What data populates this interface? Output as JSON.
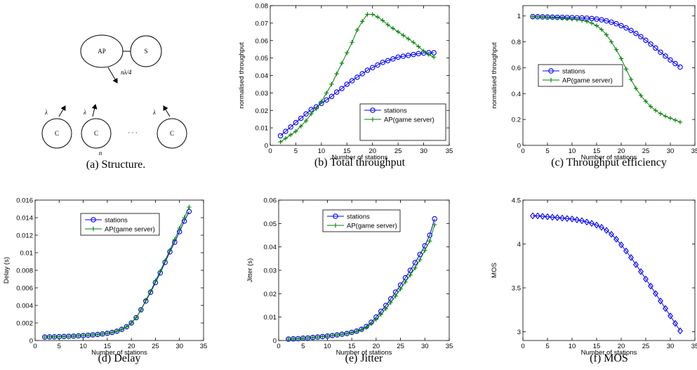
{
  "figure_title": "",
  "structure": {
    "caption": "(a)  Structure.",
    "ap_label": "AP",
    "server_label": "S",
    "client_label": "C",
    "downlink_label": "nλ/4",
    "uplink_label": "λ",
    "ellipsis": "· · ·",
    "count_label": "n"
  },
  "chart_data": [
    {
      "id": "b",
      "type": "line",
      "caption": "(b)  Total throughput",
      "xlabel": "Number of stations",
      "ylabel": "normalised throughput",
      "xlim": [
        0,
        35
      ],
      "ylim": [
        0,
        0.08
      ],
      "xticks": [
        "0",
        "5",
        "10",
        "15",
        "20",
        "25",
        "30",
        "35"
      ],
      "yticks": [
        "0",
        "0.01",
        "0.02",
        "0.03",
        "0.04",
        "0.05",
        "0.06",
        "0.07",
        "0.08"
      ],
      "legend_position": "bottom-right",
      "series": [
        {
          "name": "stations",
          "color": "#0000ff",
          "marker": "circle",
          "x": [
            2,
            3,
            4,
            5,
            6,
            7,
            8,
            9,
            10,
            11,
            12,
            13,
            14,
            15,
            16,
            17,
            18,
            19,
            20,
            21,
            22,
            23,
            24,
            25,
            26,
            27,
            28,
            29,
            30,
            31,
            32
          ],
          "y": [
            0.0055,
            0.008,
            0.0105,
            0.013,
            0.0155,
            0.018,
            0.0205,
            0.022,
            0.024,
            0.026,
            0.028,
            0.0305,
            0.0325,
            0.035,
            0.037,
            0.039,
            0.041,
            0.043,
            0.0445,
            0.046,
            0.0475,
            0.0485,
            0.0495,
            0.0505,
            0.051,
            0.0515,
            0.052,
            0.0525,
            0.0528,
            0.053,
            0.053
          ]
        },
        {
          "name": "AP(game server)",
          "color": "#008000",
          "marker": "plus",
          "x": [
            2,
            3,
            4,
            5,
            6,
            7,
            8,
            9,
            10,
            11,
            12,
            13,
            14,
            15,
            16,
            17,
            18,
            19,
            20,
            21,
            22,
            23,
            24,
            25,
            26,
            27,
            28,
            29,
            30,
            31,
            32
          ],
          "y": [
            0.002,
            0.004,
            0.006,
            0.008,
            0.011,
            0.014,
            0.018,
            0.021,
            0.025,
            0.03,
            0.035,
            0.041,
            0.047,
            0.053,
            0.059,
            0.066,
            0.071,
            0.075,
            0.075,
            0.0735,
            0.0715,
            0.069,
            0.067,
            0.065,
            0.063,
            0.061,
            0.059,
            0.0565,
            0.054,
            0.052,
            0.0505
          ]
        }
      ]
    },
    {
      "id": "c",
      "type": "line",
      "caption": "(c)  Throughput efficiency",
      "xlabel": "Number of stations",
      "ylabel": "normalised throughput",
      "xlim": [
        0,
        35
      ],
      "ylim": [
        0,
        1.08
      ],
      "xticks": [
        "0",
        "5",
        "10",
        "15",
        "20",
        "25",
        "30",
        "35"
      ],
      "yticks": [
        "0",
        "0.2",
        "0.4",
        "0.6",
        "0.8",
        "1"
      ],
      "legend_position": "middle-left",
      "series": [
        {
          "name": "stations",
          "color": "#0000ff",
          "marker": "circle",
          "x": [
            2,
            3,
            4,
            5,
            6,
            7,
            8,
            9,
            10,
            11,
            12,
            13,
            14,
            15,
            16,
            17,
            18,
            19,
            20,
            21,
            22,
            23,
            24,
            25,
            26,
            27,
            28,
            29,
            30,
            31,
            32
          ],
          "y": [
            0.995,
            0.994,
            0.993,
            0.992,
            0.991,
            0.99,
            0.989,
            0.988,
            0.987,
            0.986,
            0.985,
            0.983,
            0.98,
            0.976,
            0.97,
            0.962,
            0.952,
            0.94,
            0.925,
            0.908,
            0.888,
            0.865,
            0.84,
            0.812,
            0.783,
            0.752,
            0.72,
            0.69,
            0.66,
            0.632,
            0.605
          ]
        },
        {
          "name": "AP(game server)",
          "color": "#008000",
          "marker": "plus",
          "x": [
            2,
            3,
            4,
            5,
            6,
            7,
            8,
            9,
            10,
            11,
            12,
            13,
            14,
            15,
            16,
            17,
            18,
            19,
            20,
            21,
            22,
            23,
            24,
            25,
            26,
            27,
            28,
            29,
            30,
            31,
            32
          ],
          "y": [
            0.995,
            0.993,
            0.991,
            0.989,
            0.987,
            0.985,
            0.982,
            0.979,
            0.976,
            0.972,
            0.966,
            0.958,
            0.945,
            0.925,
            0.895,
            0.855,
            0.8,
            0.74,
            0.67,
            0.59,
            0.51,
            0.44,
            0.385,
            0.34,
            0.3,
            0.27,
            0.245,
            0.225,
            0.21,
            0.195,
            0.18
          ]
        }
      ]
    },
    {
      "id": "d",
      "type": "line",
      "caption": "(d)  Delay",
      "xlabel": "Number of stations",
      "ylabel": "Delay (s)",
      "xlim": [
        0,
        35
      ],
      "ylim": [
        0,
        0.016
      ],
      "xticks": [
        "0",
        "5",
        "10",
        "15",
        "20",
        "25",
        "30",
        "35"
      ],
      "yticks": [
        "0",
        "0.002",
        "0.004",
        "0.006",
        "0.008",
        "0.01",
        "0.012",
        "0.014",
        "0.016"
      ],
      "legend_position": "top-center",
      "series": [
        {
          "name": "stations",
          "color": "#0000ff",
          "marker": "circle",
          "x": [
            2,
            3,
            4,
            5,
            6,
            7,
            8,
            9,
            10,
            11,
            12,
            13,
            14,
            15,
            16,
            17,
            18,
            19,
            20,
            21,
            22,
            23,
            24,
            25,
            26,
            27,
            28,
            29,
            30,
            31,
            32
          ],
          "y": [
            0.0004,
            0.00041,
            0.00042,
            0.00044,
            0.00046,
            0.00048,
            0.0005,
            0.00053,
            0.00056,
            0.0006,
            0.00064,
            0.00069,
            0.00075,
            0.00082,
            0.00092,
            0.00106,
            0.00127,
            0.00157,
            0.002,
            0.0026,
            0.0035,
            0.0045,
            0.0055,
            0.0066,
            0.0077,
            0.0089,
            0.0101,
            0.0112,
            0.0124,
            0.0136,
            0.0147
          ]
        },
        {
          "name": "AP(game server)",
          "color": "#008000",
          "marker": "plus",
          "x": [
            2,
            3,
            4,
            5,
            6,
            7,
            8,
            9,
            10,
            11,
            12,
            13,
            14,
            15,
            16,
            17,
            18,
            19,
            20,
            21,
            22,
            23,
            24,
            25,
            26,
            27,
            28,
            29,
            30,
            31,
            32
          ],
          "y": [
            0.0004,
            0.00041,
            0.00042,
            0.00044,
            0.00046,
            0.00048,
            0.0005,
            0.00053,
            0.00056,
            0.0006,
            0.00064,
            0.00069,
            0.00075,
            0.00082,
            0.00092,
            0.00106,
            0.00127,
            0.00157,
            0.002,
            0.0026,
            0.0035,
            0.0046,
            0.0056,
            0.0068,
            0.0079,
            0.0091,
            0.0103,
            0.0115,
            0.0128,
            0.014,
            0.0152
          ]
        }
      ]
    },
    {
      "id": "e",
      "type": "line",
      "caption": "(e)  Jitter",
      "xlabel": "Number of stations",
      "ylabel": "Jitter (s)",
      "xlim": [
        0,
        35
      ],
      "ylim": [
        0,
        0.06
      ],
      "xticks": [
        "0",
        "5",
        "10",
        "15",
        "20",
        "25",
        "30",
        "35"
      ],
      "yticks": [
        "0",
        "0.01",
        "0.02",
        "0.03",
        "0.04",
        "0.05",
        "0.06"
      ],
      "legend_position": "top-center",
      "series": [
        {
          "name": "stations",
          "color": "#0000ff",
          "marker": "circle",
          "x": [
            2,
            3,
            4,
            5,
            6,
            7,
            8,
            9,
            10,
            11,
            12,
            13,
            14,
            15,
            16,
            17,
            18,
            19,
            20,
            21,
            22,
            23,
            24,
            25,
            26,
            27,
            28,
            29,
            30,
            31,
            32
          ],
          "y": [
            0.0006,
            0.0007,
            0.0008,
            0.001,
            0.0011,
            0.0013,
            0.0015,
            0.0017,
            0.0019,
            0.0021,
            0.0024,
            0.0027,
            0.003,
            0.0035,
            0.004,
            0.0048,
            0.006,
            0.0078,
            0.01,
            0.0125,
            0.015,
            0.0178,
            0.0207,
            0.0237,
            0.0268,
            0.03,
            0.0333,
            0.0368,
            0.0405,
            0.045,
            0.052
          ]
        },
        {
          "name": "AP(game server)",
          "color": "#008000",
          "marker": "plus",
          "x": [
            2,
            3,
            4,
            5,
            6,
            7,
            8,
            9,
            10,
            11,
            12,
            13,
            14,
            15,
            16,
            17,
            18,
            19,
            20,
            21,
            22,
            23,
            24,
            25,
            26,
            27,
            28,
            29,
            30,
            31,
            32
          ],
          "y": [
            0.0006,
            0.0007,
            0.0008,
            0.001,
            0.0011,
            0.0013,
            0.0015,
            0.0017,
            0.0019,
            0.0021,
            0.0024,
            0.0027,
            0.003,
            0.0034,
            0.0039,
            0.0046,
            0.0056,
            0.0071,
            0.009,
            0.0112,
            0.0136,
            0.0162,
            0.019,
            0.022,
            0.025,
            0.028,
            0.031,
            0.0345,
            0.0385,
            0.0425,
            0.0495
          ]
        }
      ]
    },
    {
      "id": "f",
      "type": "line",
      "caption": "(f)  MOS",
      "xlabel": "Number of stations",
      "ylabel": "MOS",
      "xlim": [
        0,
        35
      ],
      "ylim": [
        2.9,
        4.5
      ],
      "xticks": [
        "0",
        "5",
        "10",
        "15",
        "20",
        "25",
        "30",
        "35"
      ],
      "yticks": [
        "3",
        "3.5",
        "4",
        "4.5"
      ],
      "ytick_values": [
        3,
        3.5,
        4,
        4.5
      ],
      "legend_position": "none",
      "series": [
        {
          "color": "#0000ff",
          "marker": "diamond",
          "x": [
            2,
            3,
            4,
            5,
            6,
            7,
            8,
            9,
            10,
            11,
            12,
            13,
            14,
            15,
            16,
            17,
            18,
            19,
            20,
            21,
            22,
            23,
            24,
            25,
            26,
            27,
            28,
            29,
            30,
            31,
            32
          ],
          "y": [
            4.32,
            4.32,
            4.315,
            4.31,
            4.305,
            4.3,
            4.295,
            4.29,
            4.285,
            4.275,
            4.265,
            4.25,
            4.235,
            4.215,
            4.19,
            4.155,
            4.11,
            4.055,
            3.99,
            3.92,
            3.845,
            3.765,
            3.685,
            3.6,
            3.52,
            3.435,
            3.35,
            3.265,
            3.18,
            3.095,
            3.01
          ]
        }
      ]
    }
  ]
}
